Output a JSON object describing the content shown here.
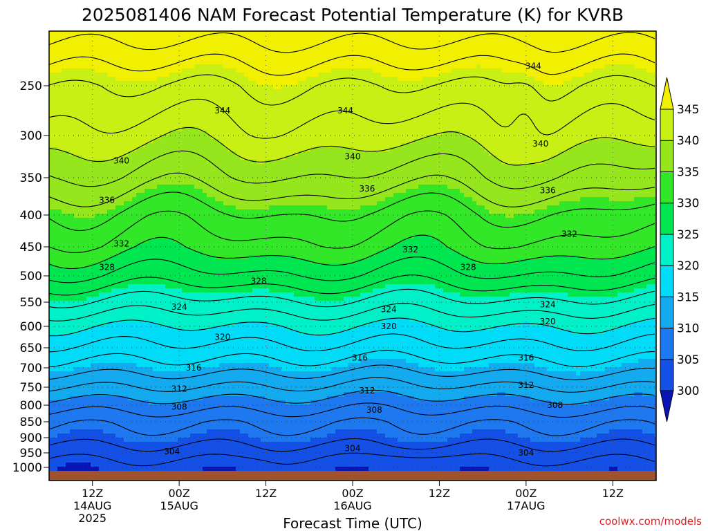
{
  "chart_data": {
    "type": "heatmap",
    "title": "2025081406 NAM Forecast Potential Temperature (K) for KVRB",
    "xlabel": "Forecast Time (UTC)",
    "ylabel": "",
    "y_scale": "log-pressure",
    "y_range_hpa": [
      1000,
      200
    ],
    "y_ticks": [
      "250",
      "300",
      "350",
      "400",
      "450",
      "500",
      "550",
      "600",
      "650",
      "700",
      "750",
      "800",
      "850",
      "900",
      "950",
      "1000"
    ],
    "x_ticks": [
      {
        "hour": 12,
        "label": "12Z",
        "date": "14AUG",
        "year": "2025"
      },
      {
        "hour": 24,
        "label": "00Z",
        "date": "15AUG",
        "year": ""
      },
      {
        "hour": 36,
        "label": "12Z",
        "date": "",
        "year": ""
      },
      {
        "hour": 48,
        "label": "00Z",
        "date": "16AUG",
        "year": ""
      },
      {
        "hour": 60,
        "label": "12Z",
        "date": "",
        "year": ""
      },
      {
        "hour": 72,
        "label": "00Z",
        "date": "17AUG",
        "year": ""
      },
      {
        "hour": 84,
        "label": "12Z",
        "date": "",
        "year": ""
      }
    ],
    "x_range_hours": [
      6,
      90
    ],
    "colorbar": {
      "levels": [
        300,
        305,
        310,
        315,
        320,
        325,
        330,
        335,
        340,
        345
      ],
      "colors": [
        "#0a14b4",
        "#1450e6",
        "#1e78f0",
        "#14aaf0",
        "#00dcf8",
        "#00f0c8",
        "#00e650",
        "#32e628",
        "#96e61e",
        "#c8f014",
        "#f0f000"
      ],
      "labels": [
        "300",
        "305",
        "310",
        "315",
        "320",
        "325",
        "330",
        "335",
        "340",
        "345"
      ]
    },
    "contour_labels": [
      {
        "value": "344",
        "hour": 30,
        "hpa": 275
      },
      {
        "value": "344",
        "hour": 47,
        "hpa": 275
      },
      {
        "value": "344",
        "hour": 73,
        "hpa": 232
      },
      {
        "value": "340",
        "hour": 16,
        "hpa": 330
      },
      {
        "value": "340",
        "hour": 48,
        "hpa": 325
      },
      {
        "value": "340",
        "hour": 74,
        "hpa": 310
      },
      {
        "value": "336",
        "hour": 14,
        "hpa": 380
      },
      {
        "value": "336",
        "hour": 50,
        "hpa": 365
      },
      {
        "value": "336",
        "hour": 75,
        "hpa": 367
      },
      {
        "value": "332",
        "hour": 16,
        "hpa": 445
      },
      {
        "value": "332",
        "hour": 56,
        "hpa": 455
      },
      {
        "value": "332",
        "hour": 78,
        "hpa": 430
      },
      {
        "value": "328",
        "hour": 14,
        "hpa": 485
      },
      {
        "value": "328",
        "hour": 35,
        "hpa": 510
      },
      {
        "value": "328",
        "hour": 64,
        "hpa": 485
      },
      {
        "value": "324",
        "hour": 24,
        "hpa": 560
      },
      {
        "value": "324",
        "hour": 53,
        "hpa": 565
      },
      {
        "value": "324",
        "hour": 75,
        "hpa": 555
      },
      {
        "value": "320",
        "hour": 30,
        "hpa": 625
      },
      {
        "value": "320",
        "hour": 53,
        "hpa": 600
      },
      {
        "value": "320",
        "hour": 75,
        "hpa": 590
      },
      {
        "value": "316",
        "hour": 26,
        "hpa": 700
      },
      {
        "value": "316",
        "hour": 49,
        "hpa": 675
      },
      {
        "value": "316",
        "hour": 72,
        "hpa": 675
      },
      {
        "value": "312",
        "hour": 24,
        "hpa": 755
      },
      {
        "value": "312",
        "hour": 50,
        "hpa": 760
      },
      {
        "value": "312",
        "hour": 72,
        "hpa": 745
      },
      {
        "value": "308",
        "hour": 24,
        "hpa": 805
      },
      {
        "value": "308",
        "hour": 51,
        "hpa": 815
      },
      {
        "value": "308",
        "hour": 76,
        "hpa": 800
      },
      {
        "value": "304",
        "hour": 23,
        "hpa": 945
      },
      {
        "value": "304",
        "hour": 48,
        "hpa": 935
      },
      {
        "value": "304",
        "hour": 72,
        "hpa": 950
      }
    ]
  },
  "credit": "coolwx.com/models",
  "colors": {
    "ground": "#a0522d",
    "contour": "#000000",
    "grid": "#333333"
  }
}
